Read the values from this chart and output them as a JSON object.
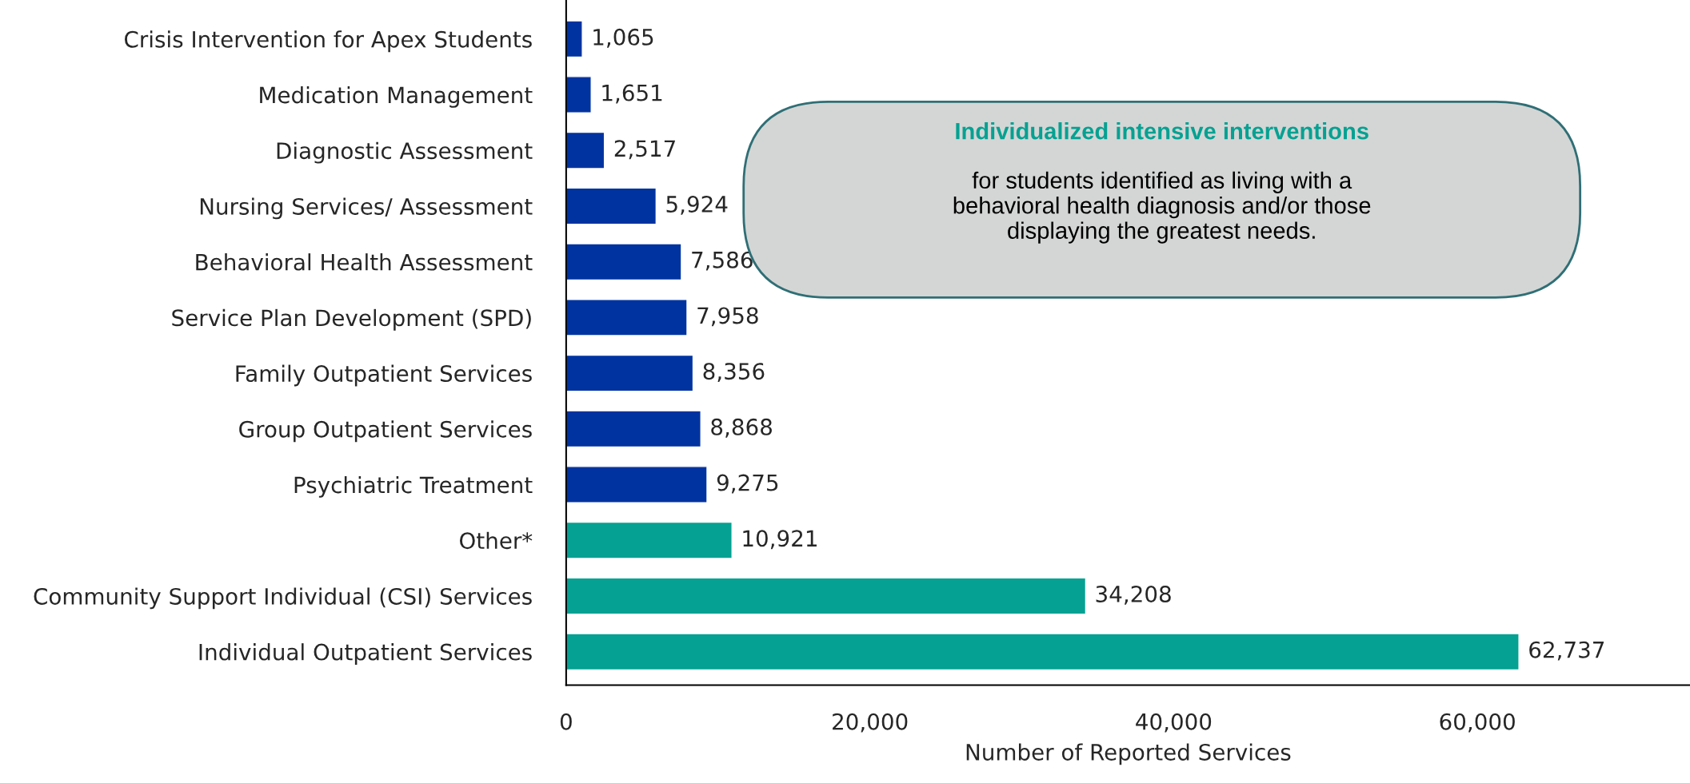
{
  "chart_data": {
    "type": "bar",
    "orientation": "horizontal",
    "categories": [
      "Crisis Intervention for Apex Students",
      "Medication Management",
      "Diagnostic Assessment",
      "Nursing Services/ Assessment",
      "Behavioral Health Assessment",
      "Service Plan Development (SPD)",
      "Family Outpatient Services",
      "Group Outpatient Services",
      "Psychiatric Treatment",
      "Other*",
      "Community Support Individual (CSI) Services",
      "Individual Outpatient Services"
    ],
    "values": [
      1065,
      1651,
      2517,
      5924,
      7586,
      7958,
      8356,
      8868,
      9275,
      10921,
      34208,
      62737
    ],
    "value_labels": [
      "1,065",
      "1,651",
      "2,517",
      "5,924",
      "7,586",
      "7,958",
      "8,356",
      "8,868",
      "9,275",
      "10,921",
      "34,208",
      "62,737"
    ],
    "colors": [
      "#0033a0",
      "#0033a0",
      "#0033a0",
      "#0033a0",
      "#0033a0",
      "#0033a0",
      "#0033a0",
      "#0033a0",
      "#0033a0",
      "#05a192",
      "#05a192",
      "#05a192"
    ],
    "xlabel": "Number of Reported Services",
    "xlim": [
      0,
      74000
    ],
    "xticks": [
      0,
      {
        "value": 20000,
        "label": "20,000"
      },
      {
        "value": 40000,
        "label": "40,000"
      },
      {
        "value": 60000,
        "label": "60,000"
      }
    ],
    "grid": false,
    "annotations": [
      "Individualized intensive interventions",
      "for students identified as living with a behavioral health diagnosis and/or those displaying the greatest needs."
    ]
  }
}
